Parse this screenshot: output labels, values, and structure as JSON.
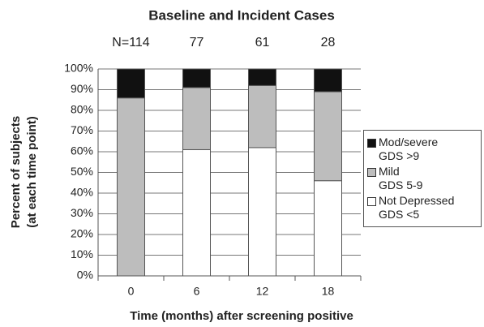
{
  "chart_data": {
    "type": "stacked_bar",
    "title": "Baseline and Incident Cases",
    "xlabel": "Time (months) after screening positive",
    "ylabel": [
      "Percent of subjects",
      "(at each time point)"
    ],
    "categories": [
      "0",
      "6",
      "12",
      "18"
    ],
    "annotations": [
      "N=114",
      "77",
      "61",
      "28"
    ],
    "series": [
      {
        "name": "Not Depressed\nGDS <5",
        "color": "#ffffff",
        "values": [
          0,
          61,
          62,
          46
        ]
      },
      {
        "name": "Mild\nGDS 5-9",
        "color": "#bdbdbd",
        "values": [
          86,
          30,
          30,
          43
        ]
      },
      {
        "name": "Mod/severe\nGDS >9",
        "color": "#111111",
        "values": [
          14,
          9,
          8,
          11
        ]
      }
    ],
    "ylim": [
      0,
      100
    ],
    "yticks": [
      {
        "value": 0,
        "label": "0%"
      },
      {
        "value": 10,
        "label": "10%"
      },
      {
        "value": 20,
        "label": "20%"
      },
      {
        "value": 30,
        "label": "30%"
      },
      {
        "value": 40,
        "label": "40%"
      },
      {
        "value": 50,
        "label": "50%"
      },
      {
        "value": 60,
        "label": "60%"
      },
      {
        "value": 70,
        "label": "70%"
      },
      {
        "value": 80,
        "label": "80%"
      },
      {
        "value": 90,
        "label": "90%"
      },
      {
        "value": 100,
        "label": "100%"
      }
    ],
    "grid": true
  }
}
